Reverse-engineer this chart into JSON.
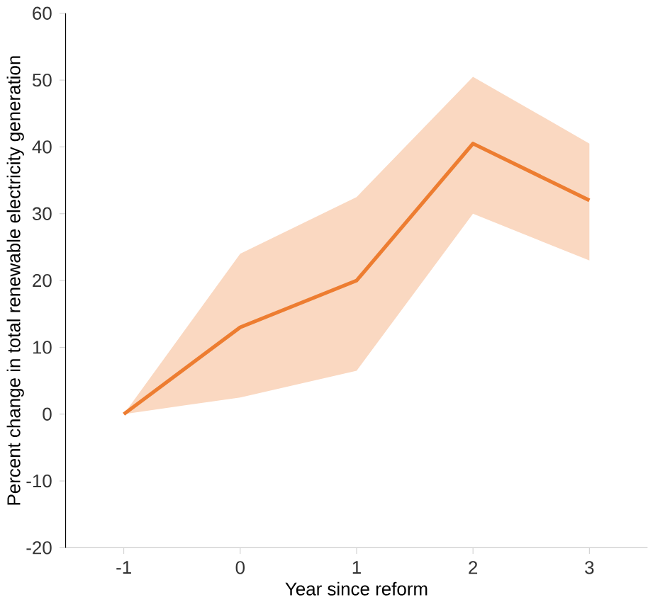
{
  "chart_data": {
    "type": "line",
    "xlabel": "Year since reform",
    "ylabel": "Percent change in total renewable electricity generation",
    "x": [
      -1,
      0,
      1,
      2,
      3
    ],
    "series": [
      {
        "color": "#ed7d31",
        "values": [
          0,
          13,
          20,
          40.5,
          32
        ],
        "lower": [
          0,
          2.5,
          6.5,
          30,
          23
        ],
        "upper": [
          0,
          24,
          32.5,
          50.5,
          40.5
        ]
      }
    ],
    "xlim": [
      -1.5,
      3.5
    ],
    "xticks": [
      -1,
      0,
      1,
      2,
      3
    ],
    "ylim": [
      -20,
      60
    ],
    "yticks": [
      -20,
      -10,
      0,
      10,
      20,
      30,
      40,
      50,
      60
    ],
    "grid": false,
    "marker": "none",
    "line_style": "solid"
  }
}
